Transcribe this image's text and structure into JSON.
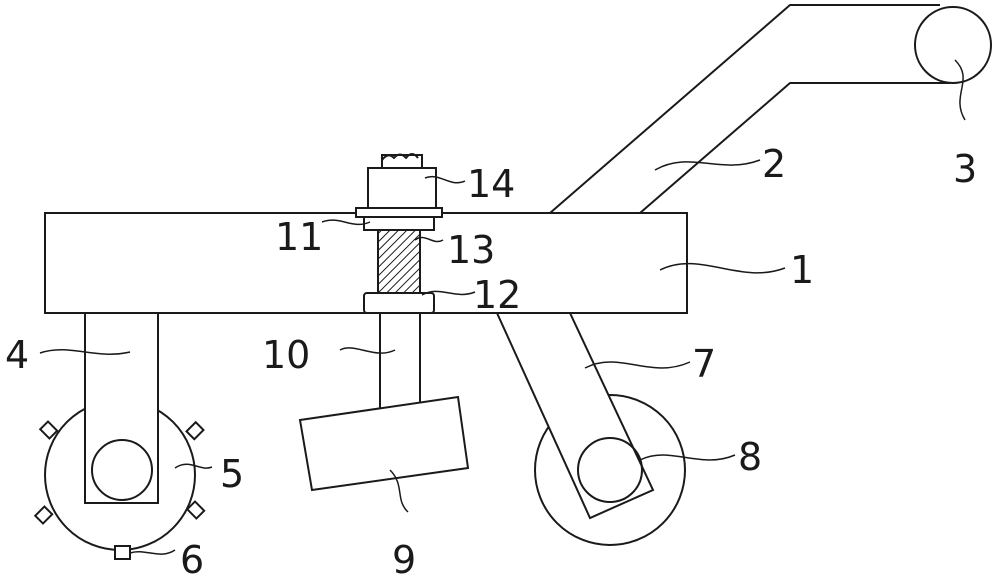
{
  "labels": {
    "body": "1",
    "handle": "2",
    "grip": "3",
    "front_arm": "4",
    "spiked_wheel": "5",
    "spike": "6",
    "rear_arm": "7",
    "rear_wheel": "8",
    "blade": "9",
    "rod": "10",
    "upper_plate": "11",
    "lower_plate": "12",
    "spring": "13",
    "motor": "14"
  }
}
